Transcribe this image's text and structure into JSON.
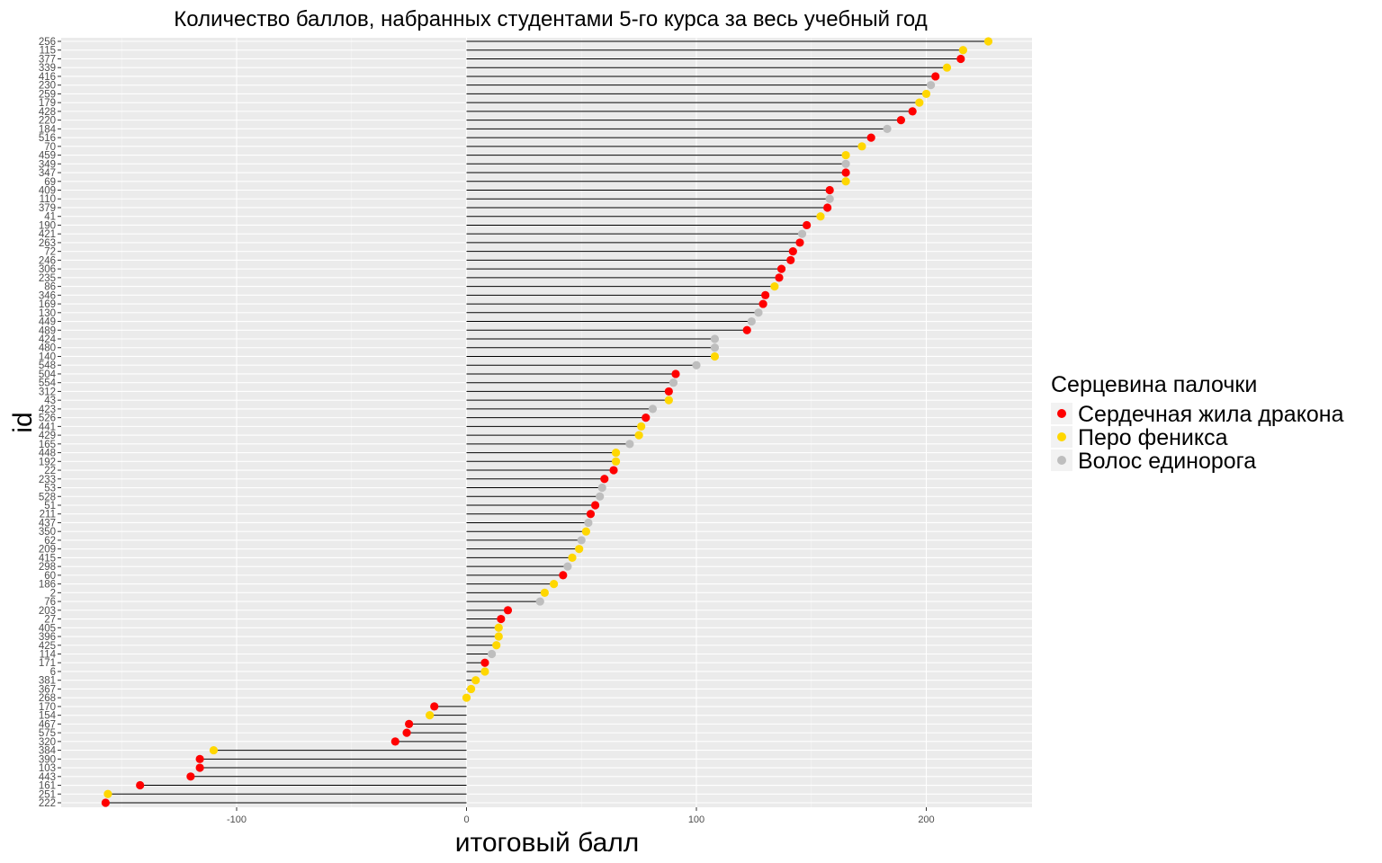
{
  "chart_data": {
    "type": "lollipop",
    "title": "Количество баллов, набранных студентами 5-го курса  за весь учебный год",
    "xlabel": "итоговый балл",
    "ylabel": "id",
    "xlim": [
      -158,
      247
    ],
    "x_ticks": [
      -100,
      0,
      100,
      200
    ],
    "x_tick_labels": [
      "-100",
      "0",
      "100",
      "200"
    ],
    "grid": true,
    "legend": {
      "title": "Серцевина палочки",
      "position": "right",
      "entries": [
        {
          "key": "dragon",
          "label": "Сердечная жила дракона",
          "color": "#ff0000"
        },
        {
          "key": "phoenix",
          "label": "Перо феникса",
          "color": "#ffd700"
        },
        {
          "key": "unicorn",
          "label": "Волос единорога",
          "color": "#bebebe"
        }
      ]
    },
    "points": [
      {
        "id": "256",
        "value": 227,
        "core": "phoenix"
      },
      {
        "id": "115",
        "value": 216,
        "core": "phoenix"
      },
      {
        "id": "377",
        "value": 215,
        "core": "dragon"
      },
      {
        "id": "339",
        "value": 209,
        "core": "phoenix"
      },
      {
        "id": "416",
        "value": 204,
        "core": "dragon"
      },
      {
        "id": "230",
        "value": 202,
        "core": "unicorn"
      },
      {
        "id": "259",
        "value": 200,
        "core": "phoenix"
      },
      {
        "id": "179",
        "value": 197,
        "core": "phoenix"
      },
      {
        "id": "428",
        "value": 194,
        "core": "dragon"
      },
      {
        "id": "220",
        "value": 189,
        "core": "dragon"
      },
      {
        "id": "184",
        "value": 183,
        "core": "unicorn"
      },
      {
        "id": "516",
        "value": 176,
        "core": "dragon"
      },
      {
        "id": "70",
        "value": 172,
        "core": "phoenix"
      },
      {
        "id": "459",
        "value": 165,
        "core": "phoenix"
      },
      {
        "id": "349",
        "value": 165,
        "core": "unicorn"
      },
      {
        "id": "347",
        "value": 165,
        "core": "dragon"
      },
      {
        "id": "69",
        "value": 165,
        "core": "phoenix"
      },
      {
        "id": "409",
        "value": 158,
        "core": "dragon"
      },
      {
        "id": "110",
        "value": 158,
        "core": "unicorn"
      },
      {
        "id": "379",
        "value": 157,
        "core": "dragon"
      },
      {
        "id": "41",
        "value": 154,
        "core": "phoenix"
      },
      {
        "id": "190",
        "value": 148,
        "core": "dragon"
      },
      {
        "id": "421",
        "value": 146,
        "core": "unicorn"
      },
      {
        "id": "263",
        "value": 145,
        "core": "dragon"
      },
      {
        "id": "72",
        "value": 142,
        "core": "dragon"
      },
      {
        "id": "246",
        "value": 141,
        "core": "dragon"
      },
      {
        "id": "306",
        "value": 137,
        "core": "dragon"
      },
      {
        "id": "235",
        "value": 136,
        "core": "dragon"
      },
      {
        "id": "86",
        "value": 134,
        "core": "phoenix"
      },
      {
        "id": "346",
        "value": 130,
        "core": "dragon"
      },
      {
        "id": "169",
        "value": 129,
        "core": "dragon"
      },
      {
        "id": "130",
        "value": 127,
        "core": "unicorn"
      },
      {
        "id": "449",
        "value": 124,
        "core": "unicorn"
      },
      {
        "id": "489",
        "value": 122,
        "core": "dragon"
      },
      {
        "id": "424",
        "value": 108,
        "core": "unicorn"
      },
      {
        "id": "480",
        "value": 108,
        "core": "unicorn"
      },
      {
        "id": "140",
        "value": 108,
        "core": "phoenix"
      },
      {
        "id": "548",
        "value": 100,
        "core": "unicorn"
      },
      {
        "id": "504",
        "value": 91,
        "core": "dragon"
      },
      {
        "id": "554",
        "value": 90,
        "core": "unicorn"
      },
      {
        "id": "312",
        "value": 88,
        "core": "dragon"
      },
      {
        "id": "43",
        "value": 88,
        "core": "phoenix"
      },
      {
        "id": "423",
        "value": 81,
        "core": "unicorn"
      },
      {
        "id": "526",
        "value": 78,
        "core": "dragon"
      },
      {
        "id": "441",
        "value": 76,
        "core": "phoenix"
      },
      {
        "id": "429",
        "value": 75,
        "core": "phoenix"
      },
      {
        "id": "165",
        "value": 71,
        "core": "unicorn"
      },
      {
        "id": "448",
        "value": 65,
        "core": "phoenix"
      },
      {
        "id": "192",
        "value": 65,
        "core": "phoenix"
      },
      {
        "id": "22",
        "value": 64,
        "core": "dragon"
      },
      {
        "id": "233",
        "value": 60,
        "core": "dragon"
      },
      {
        "id": "53",
        "value": 59,
        "core": "unicorn"
      },
      {
        "id": "528",
        "value": 58,
        "core": "unicorn"
      },
      {
        "id": "51",
        "value": 56,
        "core": "dragon"
      },
      {
        "id": "211",
        "value": 54,
        "core": "dragon"
      },
      {
        "id": "437",
        "value": 53,
        "core": "unicorn"
      },
      {
        "id": "350",
        "value": 52,
        "core": "phoenix"
      },
      {
        "id": "62",
        "value": 50,
        "core": "unicorn"
      },
      {
        "id": "209",
        "value": 49,
        "core": "phoenix"
      },
      {
        "id": "415",
        "value": 46,
        "core": "phoenix"
      },
      {
        "id": "298",
        "value": 44,
        "core": "unicorn"
      },
      {
        "id": "60",
        "value": 42,
        "core": "dragon"
      },
      {
        "id": "186",
        "value": 38,
        "core": "phoenix"
      },
      {
        "id": "2",
        "value": 34,
        "core": "phoenix"
      },
      {
        "id": "76",
        "value": 32,
        "core": "unicorn"
      },
      {
        "id": "203",
        "value": 18,
        "core": "dragon"
      },
      {
        "id": "27",
        "value": 15,
        "core": "dragon"
      },
      {
        "id": "405",
        "value": 14,
        "core": "phoenix"
      },
      {
        "id": "396",
        "value": 14,
        "core": "phoenix"
      },
      {
        "id": "425",
        "value": 13,
        "core": "phoenix"
      },
      {
        "id": "114",
        "value": 11,
        "core": "unicorn"
      },
      {
        "id": "171",
        "value": 8,
        "core": "dragon"
      },
      {
        "id": "6",
        "value": 8,
        "core": "phoenix"
      },
      {
        "id": "381",
        "value": 4,
        "core": "phoenix"
      },
      {
        "id": "367",
        "value": 2,
        "core": "phoenix"
      },
      {
        "id": "268",
        "value": 0,
        "core": "phoenix"
      },
      {
        "id": "170",
        "value": -14,
        "core": "dragon"
      },
      {
        "id": "154",
        "value": -16,
        "core": "phoenix"
      },
      {
        "id": "467",
        "value": -25,
        "core": "dragon"
      },
      {
        "id": "575",
        "value": -26,
        "core": "dragon"
      },
      {
        "id": "320",
        "value": -31,
        "core": "dragon"
      },
      {
        "id": "384",
        "value": -110,
        "core": "phoenix"
      },
      {
        "id": "390",
        "value": -116,
        "core": "dragon"
      },
      {
        "id": "103",
        "value": -116,
        "core": "dragon"
      },
      {
        "id": "443",
        "value": -120,
        "core": "dragon"
      },
      {
        "id": "161",
        "value": -142,
        "core": "dragon"
      },
      {
        "id": "251",
        "value": -156,
        "core": "phoenix"
      },
      {
        "id": "222",
        "value": -157,
        "core": "dragon"
      }
    ]
  }
}
